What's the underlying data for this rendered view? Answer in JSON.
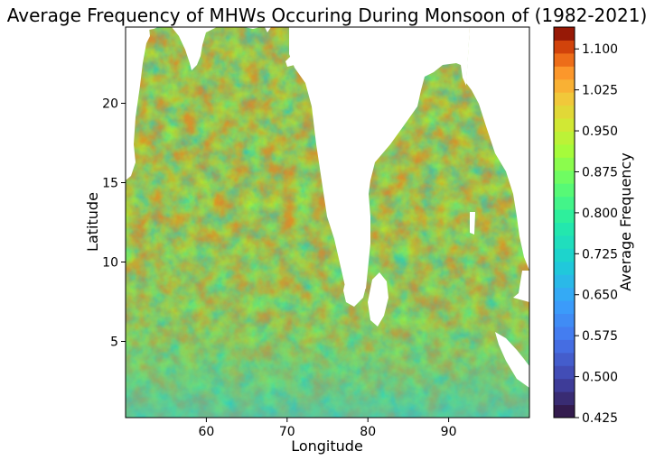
{
  "chart_data": {
    "type": "heatmap",
    "title": "Average Frequency of MHWs Occuring During Monsoon of (1982-2021)",
    "xlabel": "Longitude",
    "ylabel": "Latitude",
    "xlim": [
      50,
      100
    ],
    "ylim": [
      0.2,
      24.8
    ],
    "xticks": [
      "60",
      "70",
      "80",
      "90"
    ],
    "xtick_values": [
      60,
      70,
      80,
      90
    ],
    "yticks": [
      "5",
      "10",
      "15",
      "20"
    ],
    "ytick_values": [
      5,
      10,
      15,
      20
    ],
    "colorbar": {
      "label": "Average Frequency",
      "range": [
        0.425,
        1.14
      ],
      "ticks": [
        "0.425",
        "0.500",
        "0.575",
        "0.650",
        "0.725",
        "0.800",
        "0.875",
        "0.950",
        "1.025",
        "1.100"
      ],
      "tick_values": [
        0.425,
        0.5,
        0.575,
        0.65,
        0.725,
        0.8,
        0.875,
        0.95,
        1.025,
        1.1
      ],
      "colormap": "turbo",
      "levels": 30
    },
    "grid": false,
    "land_color": "#ffffff",
    "typical_value": 0.78
  }
}
